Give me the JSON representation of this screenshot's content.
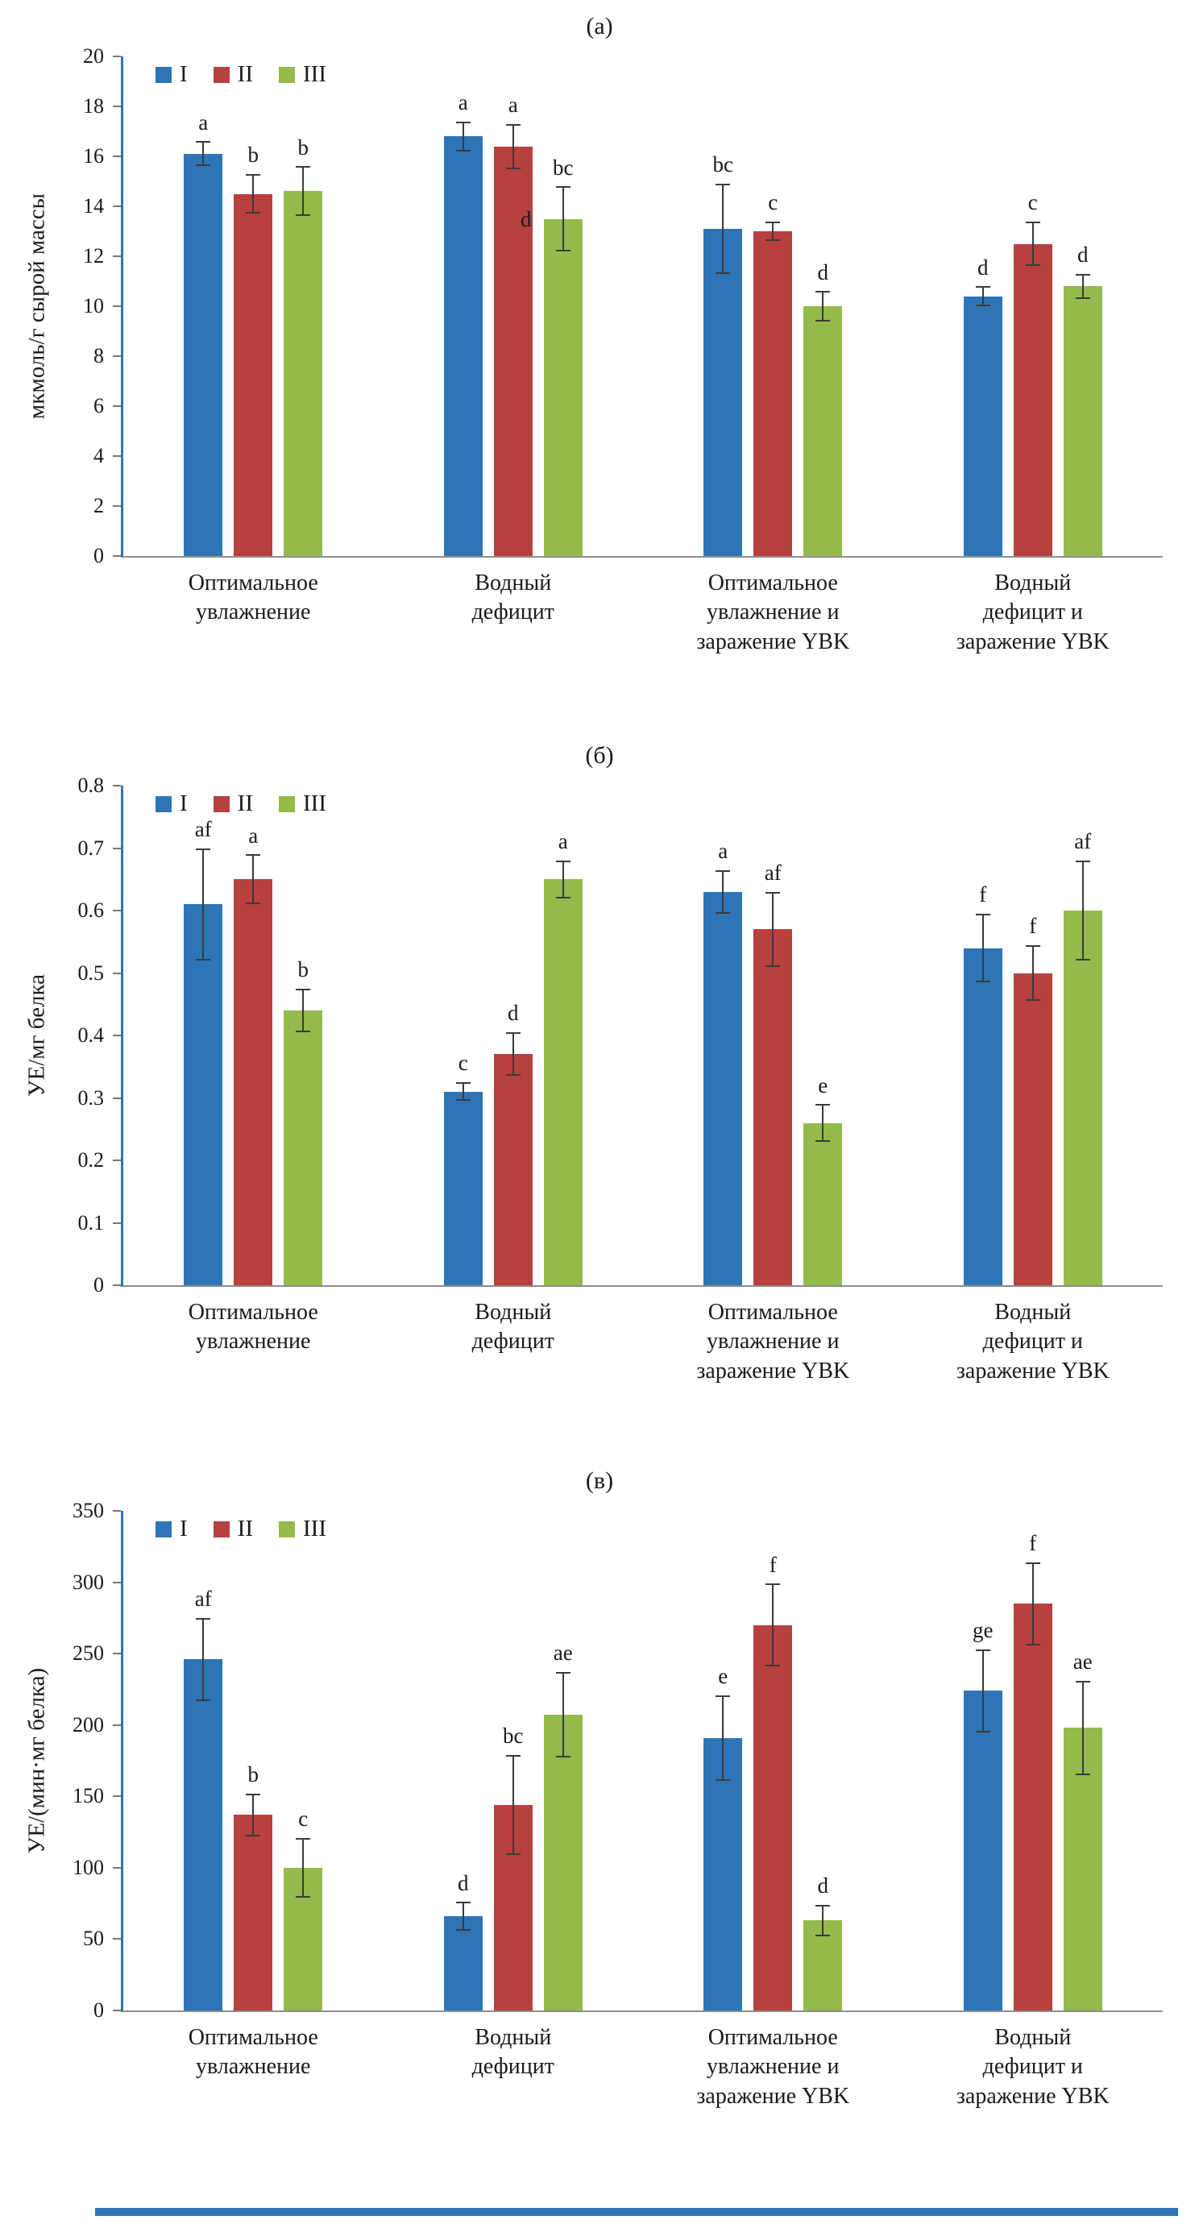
{
  "figure": {
    "type": "three-panel grouped bar chart figure",
    "panel_labels": [
      "(а)",
      "(б)",
      "(в)"
    ]
  },
  "colors": {
    "series_I": "#2E75B6",
    "series_II": "#B8403F",
    "series_III": "#94BA4C",
    "axis": "#2E75B6",
    "error_bar": "#3A3A3A",
    "bottom_rule": "#2E75B6"
  },
  "chart_data": [
    {
      "type": "bar",
      "panel_label": "(а)",
      "ylabel": "мкмоль/г сырой массы",
      "ylim": [
        0,
        20
      ],
      "yticks": [
        "0",
        "2",
        "4",
        "6",
        "8",
        "10",
        "12",
        "14",
        "16",
        "18",
        "20"
      ],
      "grid": false,
      "legend_position": "top-left",
      "categories": [
        "Оптимальное\nувлажнение",
        "Водный\nдефицит",
        "Оптимальное\nувлажнение и\nзаражение YBK",
        "Водный\nдефицит и\nзаражение YBK"
      ],
      "legend": [
        "I",
        "II",
        "III"
      ],
      "series": [
        {
          "name": "I",
          "color": "#2E75B6",
          "values": [
            16.1,
            16.8,
            13.1,
            10.4
          ],
          "errors": [
            0.5,
            0.6,
            1.8,
            0.4
          ],
          "labels": [
            "a",
            "a",
            "bc",
            "d"
          ]
        },
        {
          "name": "II",
          "color": "#B8403F",
          "values": [
            14.5,
            16.4,
            13.0,
            12.5
          ],
          "errors": [
            0.8,
            0.9,
            0.4,
            0.9
          ],
          "labels": [
            "b",
            "a",
            "c",
            "c"
          ]
        },
        {
          "name": "III",
          "color": "#94BA4C",
          "values": [
            14.6,
            13.5,
            10.0,
            10.8
          ],
          "errors": [
            1.0,
            1.3,
            0.6,
            0.5
          ],
          "labels": [
            "b",
            "bc",
            "d",
            "d"
          ]
        }
      ],
      "extra_annotations": [
        {
          "text": "d",
          "group": 1,
          "series": 2,
          "dx": -46,
          "dy": -16
        }
      ]
    },
    {
      "type": "bar",
      "panel_label": "(б)",
      "ylabel": "УЕ/мг белка",
      "ylim": [
        0,
        0.8
      ],
      "yticks": [
        "0",
        "0.1",
        "0.2",
        "0.3",
        "0.4",
        "0.5",
        "0.6",
        "0.7",
        "0.8"
      ],
      "grid": false,
      "legend_position": "top-left",
      "categories": [
        "Оптимальное\nувлажнение",
        "Водный\nдефицит",
        "Оптимальное\nувлажнение и\nзаражение YBK",
        "Водный\nдефицит и\nзаражение YBK"
      ],
      "legend": [
        "I",
        "II",
        "III"
      ],
      "series": [
        {
          "name": "I",
          "color": "#2E75B6",
          "values": [
            0.61,
            0.31,
            0.63,
            0.54
          ],
          "errors": [
            0.09,
            0.015,
            0.035,
            0.055
          ],
          "labels": [
            "af",
            "c",
            "a",
            "f"
          ]
        },
        {
          "name": "II",
          "color": "#B8403F",
          "values": [
            0.65,
            0.37,
            0.57,
            0.5
          ],
          "errors": [
            0.04,
            0.035,
            0.06,
            0.045
          ],
          "labels": [
            "a",
            "d",
            "af",
            "f"
          ]
        },
        {
          "name": "III",
          "color": "#94BA4C",
          "values": [
            0.44,
            0.65,
            0.26,
            0.6
          ],
          "errors": [
            0.035,
            0.03,
            0.03,
            0.08
          ],
          "labels": [
            "b",
            "a",
            "e",
            "af"
          ]
        }
      ],
      "extra_annotations": []
    },
    {
      "type": "bar",
      "panel_label": "(в)",
      "ylabel": "УЕ/(мин·мг белка)",
      "ylim": [
        0,
        350
      ],
      "yticks": [
        "0",
        "50",
        "100",
        "150",
        "200",
        "250",
        "300",
        "350"
      ],
      "grid": false,
      "legend_position": "top-left",
      "categories": [
        "Оптимальное\nувлажнение",
        "Водный\nдефицит",
        "Оптимальное\nувлажнение и\nзаражение YBK",
        "Водный\nдефицит и\nзаражение YBK"
      ],
      "legend": [
        "I",
        "II",
        "III"
      ],
      "series": [
        {
          "name": "I",
          "color": "#2E75B6",
          "values": [
            246,
            66,
            191,
            224
          ],
          "errors": [
            29,
            10,
            30,
            29
          ],
          "labels": [
            "af",
            "d",
            "e",
            "ge"
          ]
        },
        {
          "name": "II",
          "color": "#B8403F",
          "values": [
            137,
            144,
            270,
            285
          ],
          "errors": [
            15,
            35,
            29,
            29
          ],
          "labels": [
            "b",
            "bc",
            "f",
            "f"
          ]
        },
        {
          "name": "III",
          "color": "#94BA4C",
          "values": [
            100,
            207,
            63,
            198
          ],
          "errors": [
            21,
            30,
            11,
            33
          ],
          "labels": [
            "c",
            "ae",
            "d",
            "ae"
          ]
        }
      ],
      "extra_annotations": []
    }
  ]
}
